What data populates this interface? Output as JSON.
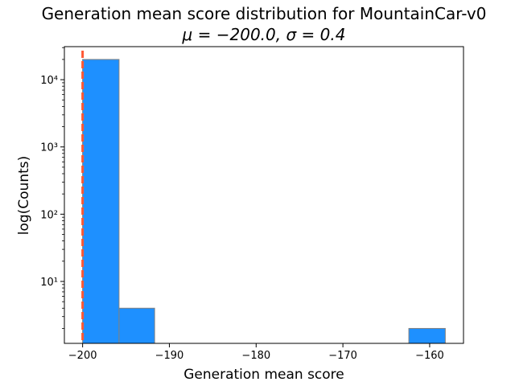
{
  "chart_data": {
    "type": "bar",
    "title": "Generation mean score distribution for MountainCar-v0",
    "subtitle": "μ = −200.0, σ = 0.4",
    "xlabel": "Generation mean score",
    "ylabel": "log(Counts)",
    "yscale": "log",
    "xlim": [
      -202.1,
      -156.1
    ],
    "ylim": [
      1.2,
      31000
    ],
    "xticks": [
      -200,
      -190,
      -180,
      -170,
      -160
    ],
    "xtick_labels": [
      "−200",
      "−190",
      "−180",
      "−170",
      "−160"
    ],
    "yticks": [
      10,
      100,
      1000,
      10000
    ],
    "ytick_labels": [
      "10¹",
      "10²",
      "10³",
      "10⁴"
    ],
    "bins": [
      {
        "x0": -200.0,
        "x1": -195.8,
        "count": 20000
      },
      {
        "x0": -195.8,
        "x1": -191.7,
        "count": 4
      },
      {
        "x0": -162.4,
        "x1": -158.2,
        "count": 2
      }
    ],
    "mean_line": {
      "x": -200.0,
      "style": "dashed"
    },
    "colors": {
      "bar_fill": "#1e90ff",
      "bar_edge": "#808080",
      "mean_line": "#ff5733"
    },
    "grid": false,
    "legend": "none"
  }
}
